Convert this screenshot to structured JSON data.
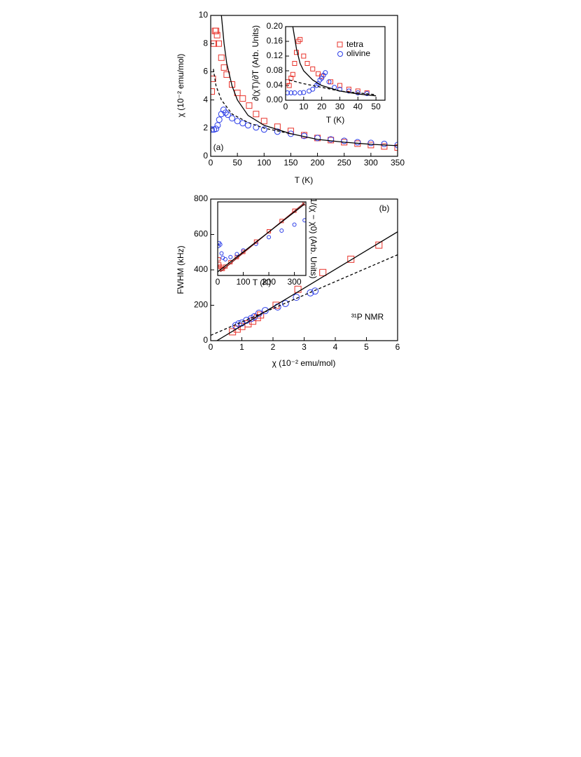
{
  "chart_data": [
    {
      "type": "scatter",
      "xlabel": "T (K)",
      "ylabel": "χ (10⁻² emu/mol)",
      "annotations": [
        "(a)"
      ],
      "xlim": [
        0,
        350
      ],
      "ylim": [
        0,
        10
      ],
      "xticks": [
        0,
        50,
        100,
        150,
        200,
        250,
        300,
        350
      ],
      "yticks": [
        0,
        2,
        4,
        6,
        8,
        10
      ],
      "series": [
        {
          "marker": "square",
          "line": "none",
          "color": "#e8332b",
          "x": [
            2,
            4,
            6,
            8,
            10,
            12,
            15,
            20,
            25,
            30,
            40,
            50,
            60,
            72,
            85,
            100,
            125,
            150,
            175,
            200,
            225,
            250,
            275,
            300,
            325,
            350
          ],
          "y": [
            4.6,
            5.5,
            8.0,
            8.9,
            8.9,
            8.6,
            8.0,
            7.0,
            6.3,
            5.8,
            5.1,
            4.5,
            4.1,
            3.6,
            3.0,
            2.5,
            2.1,
            1.8,
            1.5,
            1.3,
            1.15,
            1.0,
            0.9,
            0.8,
            0.7,
            0.62
          ]
        },
        {
          "marker": "circle",
          "line": "none",
          "color": "#2b3de8",
          "x": [
            2,
            6,
            10,
            13,
            16,
            20,
            24,
            28,
            32,
            40,
            50,
            60,
            70,
            85,
            100,
            125,
            150,
            175,
            200,
            225,
            250,
            275,
            300,
            325,
            350
          ],
          "y": [
            1.9,
            1.9,
            1.95,
            2.2,
            2.6,
            3.0,
            3.3,
            3.1,
            2.95,
            2.7,
            2.5,
            2.35,
            2.2,
            2.05,
            1.9,
            1.75,
            1.6,
            1.45,
            1.3,
            1.2,
            1.1,
            1.0,
            0.95,
            0.88,
            0.8
          ]
        },
        {
          "marker": "none",
          "line": "solid",
          "color": "#000000",
          "x": [
            20,
            25,
            30,
            40,
            50,
            70,
            100,
            150,
            200,
            250,
            300,
            350
          ],
          "y": [
            10,
            8.0,
            6.6,
            5.0,
            4.0,
            2.9,
            2.2,
            1.6,
            1.2,
            1.0,
            0.85,
            0.75
          ]
        },
        {
          "marker": "none",
          "line": "dashed",
          "color": "#000000",
          "x": [
            5,
            10,
            20,
            40,
            70,
            100,
            150
          ],
          "y": [
            6.2,
            5.0,
            4.0,
            3.0,
            2.4,
            2.0,
            1.6
          ]
        }
      ]
    },
    {
      "type": "scatter",
      "xlabel": "T (K)",
      "ylabel": "∂(χT)/∂T (Arb. Units)",
      "legend": "upper right",
      "xlim": [
        0,
        55
      ],
      "ylim": [
        0,
        0.2
      ],
      "xticks": [
        0,
        10,
        20,
        30,
        40,
        50
      ],
      "yticks": [
        {
          "value": 0,
          "label": "0.00"
        },
        0.04,
        0.08,
        0.12,
        0.16,
        {
          "value": 0.2,
          "label": "0.20"
        }
      ],
      "series": [
        {
          "name": "tetra",
          "marker": "square",
          "line": "none",
          "color": "#e8332b",
          "x": [
            1,
            2,
            3,
            4,
            5,
            6,
            7,
            8,
            10,
            12,
            15,
            18,
            20,
            25,
            30,
            35,
            40,
            45
          ],
          "y": [
            0.05,
            0.04,
            0.06,
            0.07,
            0.1,
            0.13,
            0.16,
            0.165,
            0.12,
            0.1,
            0.085,
            0.072,
            0.065,
            0.05,
            0.04,
            0.03,
            0.025,
            0.02
          ]
        },
        {
          "name": "olivine",
          "marker": "circle",
          "line": "none",
          "color": "#2b3de8",
          "x": [
            1,
            3,
            5,
            8,
            10,
            13,
            15,
            17,
            18,
            19,
            20,
            21,
            22,
            24,
            27,
            30,
            35,
            40,
            45
          ],
          "y": [
            0.02,
            0.02,
            0.02,
            0.02,
            0.021,
            0.025,
            0.03,
            0.04,
            0.045,
            0.055,
            0.06,
            0.068,
            0.075,
            0.05,
            0.035,
            0.03,
            0.025,
            0.02,
            0.018
          ]
        },
        {
          "marker": "none",
          "line": "solid",
          "color": "#000000",
          "x": [
            4,
            6,
            8,
            10,
            15,
            20,
            30,
            40,
            50
          ],
          "y": [
            0.2,
            0.14,
            0.1,
            0.08,
            0.055,
            0.04,
            0.025,
            0.017,
            0.012
          ]
        },
        {
          "marker": "none",
          "line": "dashed",
          "color": "#000000",
          "x": [
            2,
            10,
            20,
            30,
            40,
            50
          ],
          "y": [
            0.055,
            0.045,
            0.035,
            0.025,
            0.02,
            0.015
          ]
        }
      ]
    },
    {
      "type": "scatter",
      "xlabel": "χ (10⁻² emu/mol)",
      "ylabel": "FWHM (kHz)",
      "annotations": [
        "(b)",
        "³¹P NMR"
      ],
      "xlim": [
        0,
        6
      ],
      "ylim": [
        0,
        800
      ],
      "xticks": [
        0,
        1,
        2,
        3,
        4,
        5,
        6
      ],
      "yticks": [
        0,
        200,
        400,
        600,
        800
      ],
      "series": [
        {
          "marker": "square",
          "line": "none",
          "color": "#e8332b",
          "x": [
            0.7,
            0.85,
            1.0,
            1.2,
            1.35,
            1.5,
            1.6,
            2.1,
            2.8,
            3.6,
            4.5,
            5.4
          ],
          "y": [
            50,
            65,
            80,
            95,
            110,
            130,
            145,
            200,
            290,
            385,
            460,
            540
          ]
        },
        {
          "marker": "circle",
          "line": "none",
          "color": "#2b3de8",
          "x": [
            0.8,
            0.9,
            1.0,
            1.15,
            1.3,
            1.4,
            1.55,
            1.75,
            2.15,
            2.4,
            2.75,
            3.2,
            3.35
          ],
          "y": [
            85,
            95,
            100,
            115,
            125,
            135,
            155,
            170,
            190,
            210,
            245,
            270,
            280
          ]
        },
        {
          "marker": "none",
          "line": "solid",
          "color": "#000000",
          "x": [
            0.2,
            6
          ],
          "y": [
            0,
            615
          ]
        },
        {
          "marker": "none",
          "line": "dashed",
          "color": "#000000",
          "x": [
            0,
            6
          ],
          "y": [
            30,
            485
          ]
        }
      ]
    },
    {
      "type": "scatter",
      "xlabel": "T (K)",
      "ylabel": "1/(χ − χ0) (Arb. Units)",
      "xlim": [
        0,
        345
      ],
      "ylim": [
        0,
        100
      ],
      "xticks": [
        0,
        100,
        200,
        300
      ],
      "series": [
        {
          "marker": "square",
          "line": "none",
          "color": "#e8332b",
          "x": [
            3,
            6,
            10,
            15,
            20,
            30,
            50,
            75,
            100,
            150,
            200,
            250,
            300,
            340
          ],
          "y": [
            22,
            15,
            12,
            9,
            9,
            12,
            18,
            25,
            32,
            46,
            60,
            74,
            88,
            98
          ]
        },
        {
          "marker": "circle",
          "line": "none",
          "color": "#2b3de8",
          "x": [
            3,
            6,
            10,
            15,
            20,
            30,
            50,
            75,
            100,
            150,
            200,
            250,
            300,
            340
          ],
          "y": [
            40,
            44,
            42,
            30,
            24,
            22,
            25,
            29,
            34,
            43,
            52,
            61,
            69,
            75
          ]
        },
        {
          "marker": "none",
          "line": "solid",
          "color": "#8b1a1a",
          "x": [
            10,
            340
          ],
          "y": [
            5,
            99
          ]
        },
        {
          "marker": "none",
          "line": "solid",
          "color": "#000000",
          "x": [
            0,
            340
          ],
          "y": [
            5,
            97
          ]
        }
      ]
    }
  ]
}
